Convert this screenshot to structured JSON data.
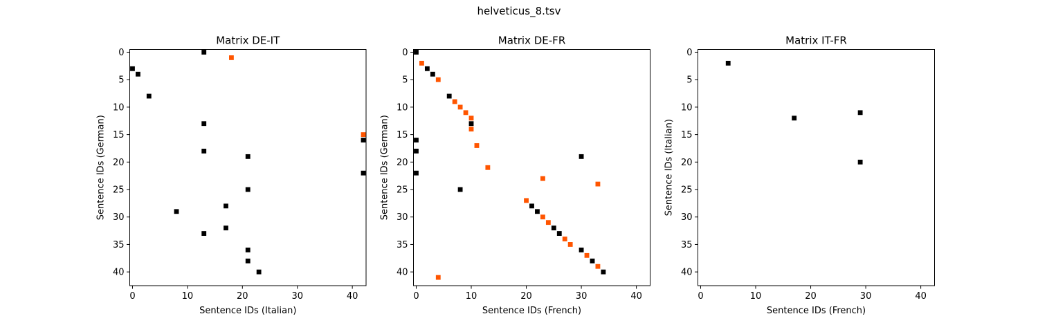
{
  "figure": {
    "suptitle": "helveticus_8.tsv"
  },
  "colors": {
    "black": "#000000",
    "orange": "#ff5500"
  },
  "chart_data": [
    {
      "type": "scatter",
      "title": "Matrix DE-IT",
      "xlabel": "Sentence IDs (Italian)",
      "ylabel": "Sentence IDs (German)",
      "xlim": [
        -0.5,
        42.5
      ],
      "ylim": [
        42.5,
        -0.5
      ],
      "xticks": [
        0,
        10,
        20,
        30,
        40
      ],
      "yticks": [
        0,
        5,
        10,
        15,
        20,
        25,
        30,
        35,
        40
      ],
      "grid": false,
      "marker": "square",
      "series": [
        {
          "color": "black",
          "points": [
            [
              13,
              0
            ],
            [
              0,
              3
            ],
            [
              1,
              4
            ],
            [
              3,
              8
            ],
            [
              13,
              13
            ],
            [
              42,
              16
            ],
            [
              13,
              18
            ],
            [
              21,
              19
            ],
            [
              42,
              22
            ],
            [
              21,
              25
            ],
            [
              17,
              28
            ],
            [
              8,
              29
            ],
            [
              17,
              32
            ],
            [
              13,
              33
            ],
            [
              21,
              36
            ],
            [
              21,
              38
            ],
            [
              23,
              40
            ]
          ]
        },
        {
          "color": "orange",
          "points": [
            [
              18,
              1
            ],
            [
              42,
              15
            ]
          ]
        }
      ]
    },
    {
      "type": "scatter",
      "title": "Matrix DE-FR",
      "xlabel": "Sentence IDs (French)",
      "ylabel": "Sentence IDs (German)",
      "xlim": [
        -0.5,
        42.5
      ],
      "ylim": [
        42.5,
        -0.5
      ],
      "xticks": [
        0,
        10,
        20,
        30,
        40
      ],
      "yticks": [
        0,
        5,
        10,
        15,
        20,
        25,
        30,
        35,
        40
      ],
      "grid": false,
      "marker": "square",
      "series": [
        {
          "color": "black",
          "points": [
            [
              0,
              0
            ],
            [
              2,
              3
            ],
            [
              3,
              4
            ],
            [
              6,
              8
            ],
            [
              10,
              13
            ],
            [
              0,
              16
            ],
            [
              0,
              18
            ],
            [
              30,
              19
            ],
            [
              0,
              22
            ],
            [
              8,
              25
            ],
            [
              21,
              28
            ],
            [
              22,
              29
            ],
            [
              25,
              32
            ],
            [
              26,
              33
            ],
            [
              30,
              36
            ],
            [
              32,
              38
            ],
            [
              34,
              40
            ]
          ]
        },
        {
          "color": "orange",
          "points": [
            [
              1,
              2
            ],
            [
              4,
              5
            ],
            [
              7,
              9
            ],
            [
              8,
              10
            ],
            [
              9,
              11
            ],
            [
              10,
              12
            ],
            [
              10,
              14
            ],
            [
              11,
              17
            ],
            [
              13,
              21
            ],
            [
              23,
              23
            ],
            [
              33,
              24
            ],
            [
              20,
              27
            ],
            [
              23,
              30
            ],
            [
              24,
              31
            ],
            [
              27,
              34
            ],
            [
              28,
              35
            ],
            [
              31,
              37
            ],
            [
              33,
              39
            ],
            [
              4,
              41
            ]
          ]
        }
      ]
    },
    {
      "type": "scatter",
      "title": "Matrix IT-FR",
      "xlabel": "Sentence IDs (French)",
      "ylabel": "Sentence IDs (Italian)",
      "xlim": [
        -0.5,
        42.5
      ],
      "ylim": [
        42.5,
        -0.5
      ],
      "xticks": [
        0,
        10,
        20,
        30,
        40
      ],
      "yticks": [
        0,
        5,
        10,
        15,
        20,
        25,
        30,
        35,
        40
      ],
      "grid": false,
      "marker": "square",
      "series": [
        {
          "color": "black",
          "points": [
            [
              5,
              2
            ],
            [
              29,
              11
            ],
            [
              17,
              12
            ],
            [
              29,
              20
            ]
          ]
        }
      ]
    }
  ]
}
